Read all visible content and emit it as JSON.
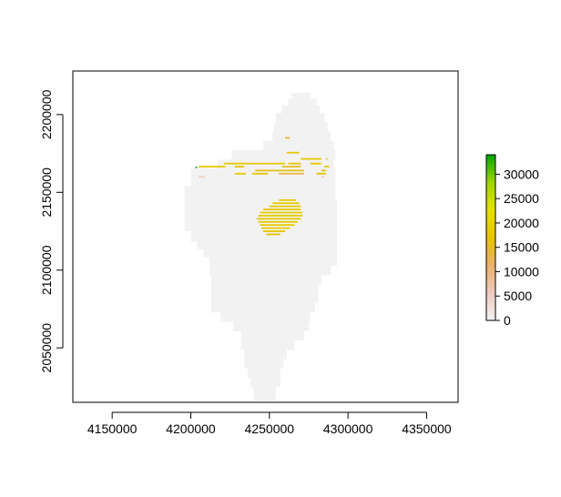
{
  "chart_data": {
    "type": "heatmap",
    "xlim": [
      4125000,
      4370000
    ],
    "ylim": [
      2015000,
      2228000
    ],
    "x_ticks": [
      4150000,
      4200000,
      4250000,
      4300000,
      4350000
    ],
    "x_tick_labels": [
      "4150000",
      "4200000",
      "4250000",
      "4300000",
      "4350000"
    ],
    "y_ticks": [
      2050000,
      2100000,
      2150000,
      2200000
    ],
    "y_tick_labels": [
      "2050000",
      "2100000",
      "2150000",
      "2200000"
    ],
    "legend": {
      "placement": "right",
      "min": 0,
      "max": 34000,
      "ticks": [
        0,
        5000,
        10000,
        15000,
        20000,
        25000,
        30000
      ],
      "tick_labels": [
        "0",
        "5000",
        "10000",
        "15000",
        "20000",
        "25000",
        "30000"
      ],
      "colors": [
        "#f2f2f2",
        "#f0c9bf",
        "#eab16b",
        "#e6c400",
        "#e5e100",
        "#9fd600",
        "#00a600"
      ]
    },
    "base_value": 0,
    "base_color": "#f2f2f2",
    "region_rows": [
      {
        "y": 2212000,
        "x0": 4264000,
        "x1": 4276000
      },
      {
        "y": 2208000,
        "x0": 4262000,
        "x1": 4280000
      },
      {
        "y": 2204000,
        "x0": 4258000,
        "x1": 4282000
      },
      {
        "y": 2198000,
        "x0": 4254000,
        "x1": 4285000
      },
      {
        "y": 2192000,
        "x0": 4253000,
        "x1": 4287000
      },
      {
        "y": 2186000,
        "x0": 4252000,
        "x1": 4289000
      },
      {
        "y": 2180000,
        "x0": 4246000,
        "x1": 4291000
      },
      {
        "y": 2174000,
        "x0": 4226000,
        "x1": 4292000
      },
      {
        "y": 2168000,
        "x0": 4217000,
        "x1": 4291000
      },
      {
        "y": 2163000,
        "x0": 4200000,
        "x1": 4292000
      },
      {
        "y": 2158000,
        "x0": 4200000,
        "x1": 4292000
      },
      {
        "y": 2150000,
        "x0": 4196000,
        "x1": 4292000
      },
      {
        "y": 2140000,
        "x0": 4196000,
        "x1": 4293000
      },
      {
        "y": 2130000,
        "x0": 4196000,
        "x1": 4293000
      },
      {
        "y": 2121000,
        "x0": 4200000,
        "x1": 4293000
      },
      {
        "y": 2116000,
        "x0": 4204000,
        "x1": 4293000
      },
      {
        "y": 2111000,
        "x0": 4208000,
        "x1": 4293000
      },
      {
        "y": 2106000,
        "x0": 4212000,
        "x1": 4293000
      },
      {
        "y": 2100000,
        "x0": 4212000,
        "x1": 4289000
      },
      {
        "y": 2094000,
        "x0": 4213000,
        "x1": 4283000
      },
      {
        "y": 2088000,
        "x0": 4213000,
        "x1": 4281000
      },
      {
        "y": 2082000,
        "x0": 4213000,
        "x1": 4281000
      },
      {
        "y": 2076000,
        "x0": 4213000,
        "x1": 4279000
      },
      {
        "y": 2070000,
        "x0": 4219000,
        "x1": 4276000
      },
      {
        "y": 2064000,
        "x0": 4227000,
        "x1": 4275000
      },
      {
        "y": 2058000,
        "x0": 4232000,
        "x1": 4272000
      },
      {
        "y": 2052000,
        "x0": 4232000,
        "x1": 4266000
      },
      {
        "y": 2046000,
        "x0": 4234000,
        "x1": 4261000
      },
      {
        "y": 2040000,
        "x0": 4234000,
        "x1": 4259000
      },
      {
        "y": 2034000,
        "x0": 4236000,
        "x1": 4257000
      },
      {
        "y": 2028000,
        "x0": 4238000,
        "x1": 4257000
      },
      {
        "y": 2022000,
        "x0": 4240000,
        "x1": 4254000
      },
      {
        "y": 2017000,
        "x0": 4240000,
        "x1": 4254000
      }
    ],
    "value_segments": [
      {
        "y": 2185000,
        "x0": 4260000,
        "x1": 4263000,
        "value": 14000
      },
      {
        "y": 2175500,
        "x0": 4261000,
        "x1": 4269000,
        "value": 17000
      },
      {
        "y": 2171500,
        "x0": 4270000,
        "x1": 4283000,
        "value": 17500
      },
      {
        "y": 2171500,
        "x0": 4286000,
        "x1": 4287000,
        "value": 17000
      },
      {
        "y": 2168500,
        "x0": 4221000,
        "x1": 4260000,
        "value": 18000
      },
      {
        "y": 2168500,
        "x0": 4262000,
        "x1": 4270000,
        "value": 17000
      },
      {
        "y": 2168500,
        "x0": 4276000,
        "x1": 4283000,
        "value": 18000
      },
      {
        "y": 2166500,
        "x0": 4205000,
        "x1": 4222000,
        "value": 18000
      },
      {
        "y": 2166500,
        "x0": 4228000,
        "x1": 4234000,
        "value": 17000
      },
      {
        "y": 2166500,
        "x0": 4258000,
        "x1": 4270000,
        "value": 15000
      },
      {
        "y": 2166500,
        "x0": 4285000,
        "x1": 4288000,
        "value": 18000
      },
      {
        "y": 2166000,
        "x0": 4203000,
        "x1": 4204000,
        "value": 34000
      },
      {
        "y": 2164000,
        "x0": 4241000,
        "x1": 4272000,
        "value": 16000
      },
      {
        "y": 2164000,
        "x0": 4283000,
        "x1": 4286000,
        "value": 16000
      },
      {
        "y": 2162000,
        "x0": 4228000,
        "x1": 4235000,
        "value": 17000
      },
      {
        "y": 2162000,
        "x0": 4239000,
        "x1": 4249000,
        "value": 17000
      },
      {
        "y": 2162000,
        "x0": 4256000,
        "x1": 4272000,
        "value": 14000
      },
      {
        "y": 2162000,
        "x0": 4280000,
        "x1": 4286000,
        "value": 17000
      },
      {
        "y": 2160000,
        "x0": 4205000,
        "x1": 4209000,
        "value": 5000
      },
      {
        "y": 2160000,
        "x0": 4283000,
        "x1": 4285000,
        "value": 5000
      },
      {
        "y": 2145000,
        "x0": 4256000,
        "x1": 4267000,
        "value": 18000
      },
      {
        "y": 2143000,
        "x0": 4252000,
        "x1": 4269000,
        "value": 18000
      },
      {
        "y": 2141000,
        "x0": 4250000,
        "x1": 4270000,
        "value": 18000
      },
      {
        "y": 2139000,
        "x0": 4246000,
        "x1": 4270000,
        "value": 18000
      },
      {
        "y": 2137000,
        "x0": 4244000,
        "x1": 4271000,
        "value": 18500
      },
      {
        "y": 2135000,
        "x0": 4243000,
        "x1": 4271000,
        "value": 18000
      },
      {
        "y": 2133000,
        "x0": 4242000,
        "x1": 4270000,
        "value": 18000
      },
      {
        "y": 2131000,
        "x0": 4243000,
        "x1": 4268000,
        "value": 18000
      },
      {
        "y": 2129000,
        "x0": 4244000,
        "x1": 4266000,
        "value": 18000
      },
      {
        "y": 2127000,
        "x0": 4245000,
        "x1": 4263000,
        "value": 18000
      },
      {
        "y": 2125000,
        "x0": 4246000,
        "x1": 4260000,
        "value": 17500
      },
      {
        "y": 2123000,
        "x0": 4248000,
        "x1": 4257000,
        "value": 17000
      }
    ]
  }
}
